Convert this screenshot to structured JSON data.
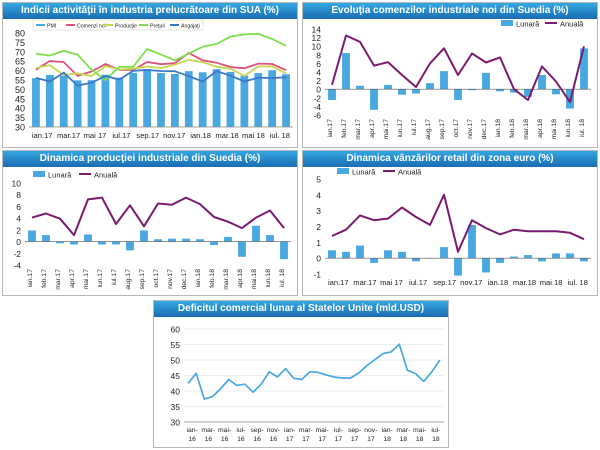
{
  "colors": {
    "bar": "#4aa8e0",
    "annual": "#7b1b6e",
    "pmi": "#4aa8e0",
    "new_orders": "#e0507a",
    "production": "#c8d650",
    "prices": "#7ee04a",
    "employment": "#3c78c8",
    "us_line": "#4aa8e0"
  },
  "chart_data": [
    {
      "type": "line",
      "title": "Indicii activităţii în industria prelucrătoare din SUA (%)",
      "ylim": [
        30,
        80
      ],
      "yticks": [
        30,
        35,
        40,
        45,
        50,
        55,
        60,
        65,
        70,
        75,
        80
      ],
      "x_tick_labels": [
        "ian.17",
        "mar.17",
        "mai 17",
        "iul.17",
        "sep.17",
        "nov.17",
        "ian.18",
        "mar.18",
        "mai 18",
        "iul. 18"
      ],
      "legend": [
        "PMI",
        "Comenzi noi",
        "Producţie",
        "Preţuri",
        "Angajaţi"
      ],
      "series": [
        {
          "name": "PMI",
          "render": "bar",
          "values": [
            56,
            57.7,
            57.2,
            54.8,
            54.9,
            57.8,
            56.3,
            58.8,
            60.8,
            58.7,
            58.2,
            59.7,
            59.1,
            60.8,
            59.3,
            57.3,
            58.7,
            60.2,
            58.1
          ]
        },
        {
          "name": "Comenzi noi",
          "values": [
            60.4,
            65.1,
            64.5,
            57.2,
            59.5,
            63.5,
            60.4,
            60.3,
            64.6,
            63.4,
            64,
            69.4,
            65.4,
            64.2,
            61.9,
            61.2,
            63.7,
            63.5,
            60.2
          ]
        },
        {
          "name": "Producţie",
          "values": [
            61.4,
            62.9,
            57.6,
            58.6,
            57.1,
            62.4,
            60.6,
            61,
            62.2,
            61.4,
            63.2,
            65.8,
            64.5,
            62,
            61,
            57.2,
            62.2,
            62.3,
            58.5
          ]
        },
        {
          "name": "Preţuri",
          "values": [
            69,
            68,
            70.5,
            68.5,
            60.5,
            55,
            62,
            62,
            71.5,
            68.5,
            65.5,
            69,
            72.7,
            74.2,
            78.1,
            79.3,
            79.5,
            76.8,
            73.2
          ]
        },
        {
          "name": "Angajaţi",
          "values": [
            56.1,
            54.2,
            58.9,
            52,
            53.5,
            57.2,
            55.2,
            59.9,
            60.3,
            59.8,
            59.7,
            57,
            54.2,
            59.7,
            57.3,
            54.2,
            56.3,
            56,
            56.5
          ]
        }
      ]
    },
    {
      "type": "bar",
      "title": "Evoluţia comenzilor industriale noi din Suedia (%)",
      "ylim": [
        -6,
        14
      ],
      "yticks": [
        -6,
        -4,
        -2,
        0,
        2,
        4,
        6,
        8,
        10,
        12,
        14
      ],
      "x_tick_labels": [
        "ian.17",
        "feb.17",
        "mar.17",
        "apr.17",
        "mai.17",
        "iun.17",
        "iul.17",
        "aug.17",
        "sep.17",
        "oct.17",
        "nov.17",
        "dec.17",
        "ian.18",
        "feb.18",
        "mar.18",
        "apr.18",
        "mai.18",
        "iun.18",
        "iul. 18"
      ],
      "legend": [
        "Lunară",
        "Anuală"
      ],
      "series": [
        {
          "name": "Lunară",
          "render": "bar",
          "values": [
            -2.5,
            8.4,
            0.8,
            -4.8,
            1,
            -1.3,
            -1,
            1.4,
            4.2,
            -2.5,
            -0.2,
            3.8,
            -0.5,
            -0.8,
            -1.8,
            3.3,
            -1.2,
            -4.5,
            9.5
          ]
        },
        {
          "name": "Anuală",
          "values": [
            1,
            12.5,
            11,
            5.5,
            6.3,
            3.3,
            0.5,
            6,
            9.5,
            3.3,
            8.3,
            6.2,
            7.4,
            0,
            -2.5,
            5.3,
            1.8,
            -3,
            10
          ]
        }
      ]
    },
    {
      "type": "bar",
      "title": "Dinamica producţiei industriale din Suedia (%)",
      "ylim": [
        -4,
        10
      ],
      "yticks": [
        -4,
        -2,
        0,
        2,
        4,
        6,
        8,
        10
      ],
      "x_tick_labels": [
        "ian.17",
        "feb.17",
        "mar.17",
        "apr.17",
        "mai.17",
        "iun.17",
        "iul.17",
        "aug.17",
        "sep.17",
        "oct.17",
        "nov.17",
        "dec.17",
        "ian.18",
        "feb.18",
        "mar.18",
        "apr.18",
        "mai.18",
        "iun.18",
        "iul. 18"
      ],
      "legend": [
        "Lunară",
        "Anuală"
      ],
      "series": [
        {
          "name": "Lunară",
          "render": "bar",
          "values": [
            1.9,
            1.1,
            -0.3,
            -0.5,
            1.2,
            -0.5,
            -0.5,
            -1.5,
            1.9,
            0.4,
            0.5,
            0.5,
            0.4,
            -0.6,
            0.8,
            -2.6,
            2.7,
            1.1,
            -3
          ]
        },
        {
          "name": "Anuală",
          "values": [
            4.1,
            4.8,
            3.9,
            1.1,
            7.2,
            7.5,
            3,
            6.2,
            2.6,
            6.5,
            6.3,
            7.5,
            6.4,
            4.2,
            3.4,
            2.3,
            4.1,
            5.3,
            2.3
          ]
        }
      ]
    },
    {
      "type": "bar",
      "title": "Dinamica vânzărilor retail din zona euro (%)",
      "ylim": [
        -1,
        5
      ],
      "yticks": [
        -1,
        0,
        1,
        2,
        3,
        4,
        5
      ],
      "x_tick_labels": [
        "ian.17",
        "mar.17",
        "mai 17",
        "iul.17",
        "sep.17",
        "nov.17",
        "ian.18",
        "mar.18",
        "mai 18",
        "iul. 18"
      ],
      "legend": [
        "Lunară",
        "Anuală"
      ],
      "series": [
        {
          "name": "Lunară",
          "render": "bar",
          "values": [
            0.5,
            0.4,
            0.8,
            -0.3,
            0.5,
            0.4,
            -0.2,
            0,
            0.7,
            -1.1,
            2.1,
            -0.9,
            -0.3,
            0.1,
            0.2,
            -0.2,
            0.3,
            0.3,
            -0.2
          ]
        },
        {
          "name": "Anuală",
          "values": [
            1.4,
            1.8,
            2.7,
            2.4,
            2.5,
            3.2,
            2.6,
            2.1,
            4,
            0.4,
            2.4,
            1.9,
            1.5,
            1.8,
            1.7,
            1.7,
            1.7,
            1.6,
            1.2
          ]
        }
      ]
    },
    {
      "type": "line",
      "title": "Deficitul comercial lunar al Statelor Unite (mld.USD)",
      "ylim": [
        30,
        60
      ],
      "yticks": [
        30,
        35,
        40,
        45,
        50,
        55,
        60
      ],
      "x_tick_labels": [
        "ian-16",
        "mar-16",
        "mai-16",
        "iul-16",
        "sep-16",
        "nov-16",
        "ian-17",
        "mar-17",
        "mai-17",
        "iul-17",
        "sep-17",
        "nov-17",
        "ian-18",
        "mar-18",
        "mai-18",
        "iul-18"
      ],
      "series": [
        {
          "name": "Deficit",
          "values": [
            42.5,
            45.7,
            37.4,
            38.2,
            40.7,
            43.7,
            41.8,
            42.2,
            39.6,
            42.2,
            46.2,
            44.5,
            47.2,
            44.1,
            43.7,
            46.2,
            46,
            45.2,
            44.5,
            44.2,
            44.2,
            45.8,
            48.2,
            50.1,
            52.1,
            52.6,
            55.1,
            46.7,
            45.6,
            43.1,
            46.2,
            50
          ]
        }
      ]
    }
  ]
}
